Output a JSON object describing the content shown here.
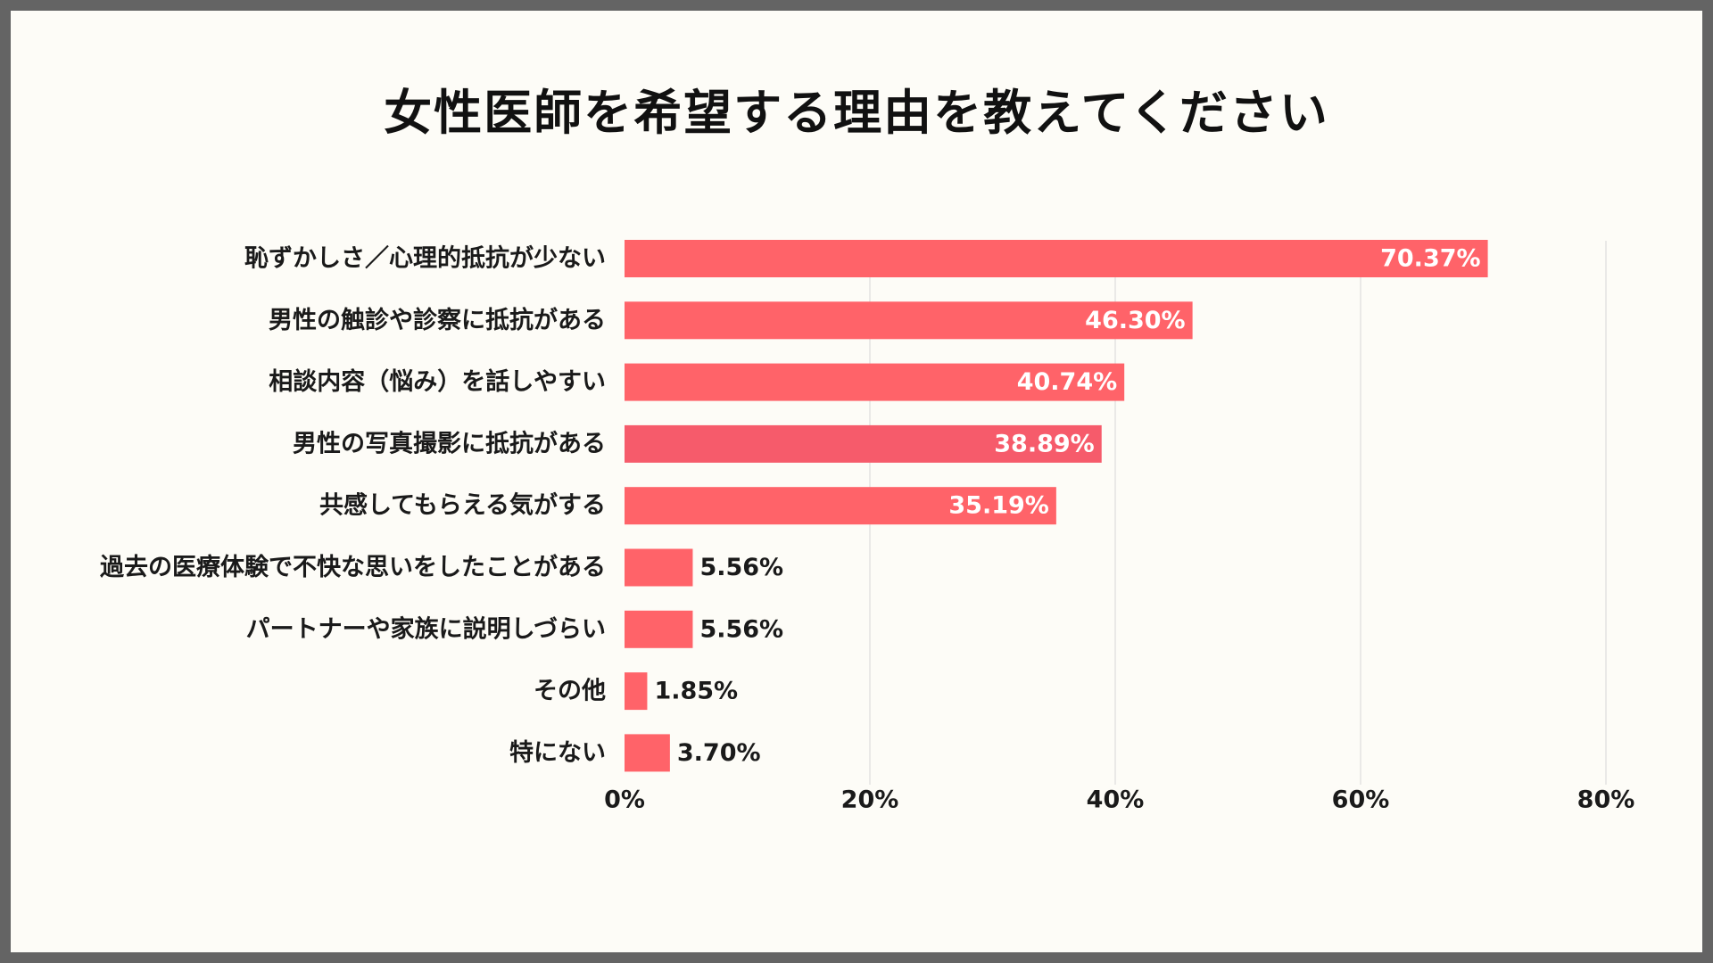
{
  "chart_data": {
    "type": "bar",
    "orientation": "horizontal",
    "title": "女性医師を希望する理由を教えてください",
    "categories": [
      "恥ずかしさ／心理的抵抗が少ない",
      "男性の触診や診察に抵抗がある",
      "相談内容（悩み）を話しやすい",
      "男性の写真撮影に抵抗がある",
      "共感してもらえる気がする",
      "過去の医療体験で不快な思いをしたことがある",
      "パートナーや家族に説明しづらい",
      "その他",
      "特にない"
    ],
    "values": [
      70.37,
      46.3,
      40.74,
      38.89,
      35.19,
      5.56,
      5.56,
      1.85,
      3.7
    ],
    "value_labels": [
      "70.37%",
      "46.30%",
      "40.74%",
      "38.89%",
      "35.19%",
      "5.56%",
      "5.56%",
      "1.85%",
      "3.70%"
    ],
    "xlim": [
      0,
      80
    ],
    "ticks": [
      0,
      20,
      40,
      60,
      80
    ],
    "tick_labels": [
      "0%",
      "20%",
      "40%",
      "60%",
      "80%"
    ],
    "xlabel": "",
    "ylabel": "",
    "grid": true,
    "colors": {
      "bar": "#ff6369",
      "bar_highlight": "#f65b6b",
      "grid": "#dddddd",
      "background": "#fdfcf7"
    }
  }
}
